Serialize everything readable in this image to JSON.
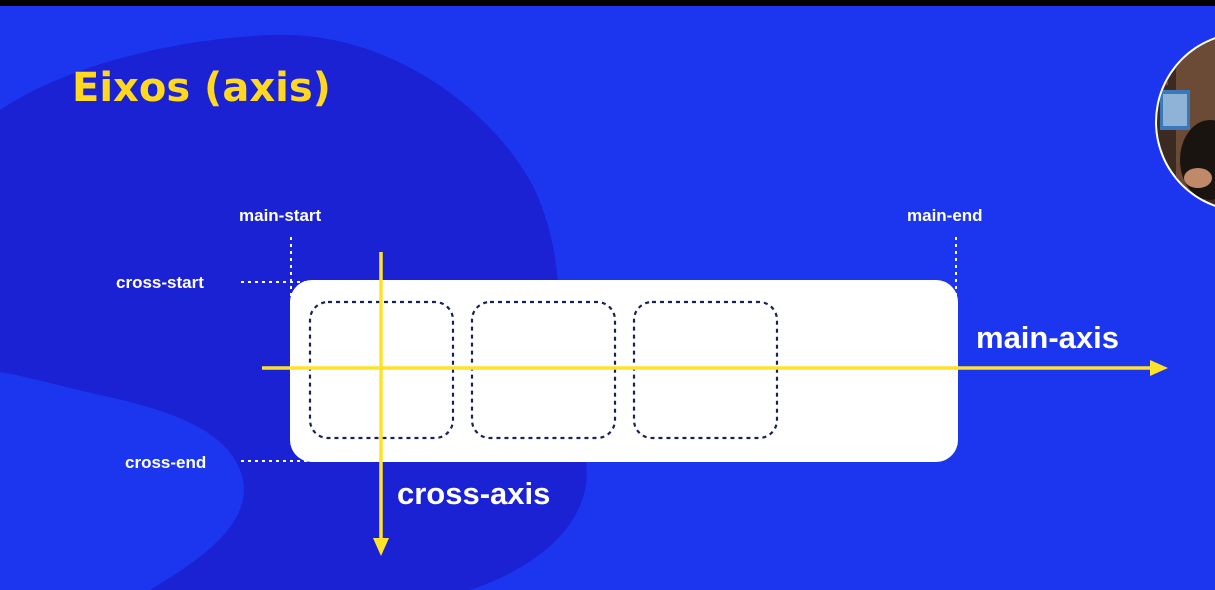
{
  "slide": {
    "title": "Eixos (axis)"
  },
  "diagram": {
    "labels": {
      "main_start": "main-start",
      "main_end": "main-end",
      "cross_start": "cross-start",
      "cross_end": "cross-end",
      "main_axis": "main-axis",
      "cross_axis": "cross-axis"
    },
    "flex_item_count": 3
  },
  "colors": {
    "background": "#1c36f0",
    "blob": "#1a22d4",
    "accent_yellow": "#ffe22a",
    "title_yellow": "#ffd81f",
    "container": "#ffffff",
    "item_border": "#1b1f5c",
    "guide_lines": "#ffffff"
  },
  "webcam": {
    "icon": "presenter-webcam-icon"
  }
}
